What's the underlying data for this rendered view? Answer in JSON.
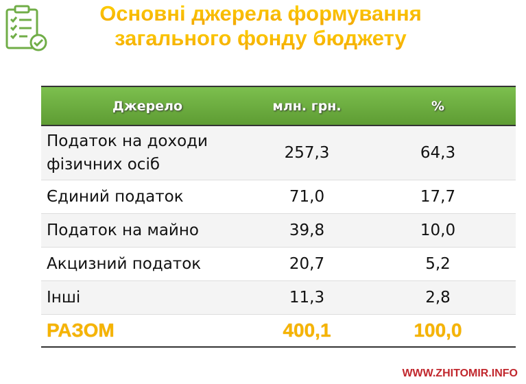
{
  "header": {
    "title_lines": [
      "Основні джерела формування",
      "загального фонду бюджету"
    ]
  },
  "table": {
    "columns": [
      "Джерело",
      "млн. грн.",
      "%"
    ],
    "rows": [
      [
        "Податок на доходи фізичних осіб",
        "257,3",
        "64,3"
      ],
      [
        "Єдиний податок",
        "71,0",
        "17,7"
      ],
      [
        "Податок на майно",
        "39,8",
        "10,0"
      ],
      [
        "Акцизний податок",
        "20,7",
        "5,2"
      ],
      [
        "Інші",
        "11,3",
        "2,8"
      ]
    ],
    "total": [
      "РАЗОМ",
      "400,1",
      "100,0"
    ]
  },
  "footer": {
    "watermark": "WWW.ZHITOMIR.INFO"
  }
}
